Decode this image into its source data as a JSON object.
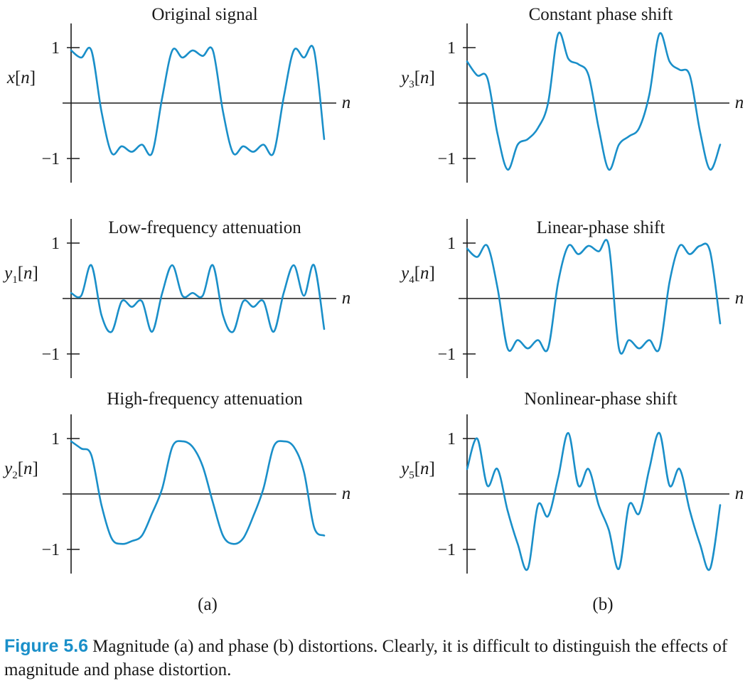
{
  "chart_data": [
    {
      "type": "line",
      "id": "x",
      "title": "Original signal",
      "ylabel": {
        "base": "x",
        "sub": "",
        "arg": "n"
      },
      "xlabel": "n",
      "yticks": [
        1,
        -1
      ],
      "ylim": [
        -1.4,
        1.4
      ],
      "series": [
        {
          "name": "x[n]",
          "x": [
            0,
            4,
            8,
            12,
            16,
            20,
            24,
            28,
            32,
            36,
            40,
            44,
            48,
            52,
            56,
            60,
            64,
            68,
            72,
            76,
            80,
            84,
            88,
            92,
            96,
            100
          ],
          "y": [
            0.95,
            0.82,
            0.95,
            -0.15,
            -0.9,
            -0.78,
            -0.88,
            -0.75,
            -0.9,
            0.1,
            0.95,
            0.82,
            0.95,
            0.85,
            0.95,
            -0.15,
            -0.9,
            -0.78,
            -0.88,
            -0.75,
            -0.9,
            0.1,
            0.95,
            0.82,
            0.95,
            -0.65
          ]
        }
      ]
    },
    {
      "type": "line",
      "id": "y3",
      "title": "Constant phase shift",
      "ylabel": {
        "base": "y",
        "sub": "3",
        "arg": "n"
      },
      "xlabel": "n",
      "yticks": [
        1,
        -1
      ],
      "ylim": [
        -1.4,
        1.4
      ],
      "series": [
        {
          "name": "y3[n]",
          "x": [
            0,
            4,
            8,
            12,
            16,
            20,
            24,
            28,
            32,
            36,
            40,
            44,
            48,
            52,
            56,
            60,
            64,
            68,
            72,
            76,
            80,
            84,
            88,
            92,
            96,
            100
          ],
          "y": [
            0.75,
            0.5,
            0.45,
            -0.55,
            -1.2,
            -0.75,
            -0.65,
            -0.45,
            0.0,
            1.25,
            0.8,
            0.7,
            0.5,
            -0.45,
            -1.2,
            -0.75,
            -0.6,
            -0.45,
            0.15,
            1.25,
            0.75,
            0.6,
            0.5,
            -0.5,
            -1.2,
            -0.75
          ]
        }
      ]
    },
    {
      "type": "line",
      "id": "y1",
      "title": "Low-frequency attenuation",
      "ylabel": {
        "base": "y",
        "sub": "1",
        "arg": "n"
      },
      "xlabel": "n",
      "yticks": [
        1,
        -1
      ],
      "ylim": [
        -1.4,
        1.4
      ],
      "series": [
        {
          "name": "y1[n]",
          "x": [
            0,
            4,
            8,
            12,
            16,
            20,
            24,
            28,
            32,
            36,
            40,
            44,
            48,
            52,
            56,
            60,
            64,
            68,
            72,
            76,
            80,
            84,
            88,
            92,
            96,
            100
          ],
          "y": [
            0.1,
            0.05,
            0.6,
            -0.3,
            -0.6,
            -0.05,
            -0.15,
            -0.05,
            -0.6,
            0.1,
            0.6,
            0.05,
            0.1,
            0.05,
            0.6,
            -0.3,
            -0.6,
            -0.05,
            -0.15,
            -0.05,
            -0.6,
            0.1,
            0.6,
            0.05,
            0.6,
            -0.55
          ]
        }
      ]
    },
    {
      "type": "line",
      "id": "y4",
      "title": "Linear-phase shift",
      "ylabel": {
        "base": "y",
        "sub": "4",
        "arg": "n"
      },
      "xlabel": "n",
      "yticks": [
        1,
        -1
      ],
      "ylim": [
        -1.4,
        1.4
      ],
      "series": [
        {
          "name": "y4[n]",
          "x": [
            0,
            4,
            8,
            12,
            16,
            20,
            24,
            28,
            32,
            36,
            40,
            44,
            48,
            52,
            56,
            60,
            64,
            68,
            72,
            76,
            80,
            84,
            88,
            92,
            96,
            100
          ],
          "y": [
            0.9,
            0.75,
            0.95,
            0.2,
            -0.9,
            -0.75,
            -0.9,
            -0.75,
            -0.9,
            0.3,
            0.95,
            0.8,
            0.95,
            0.85,
            0.95,
            -0.9,
            -0.75,
            -0.9,
            -0.75,
            -0.9,
            0.3,
            0.95,
            0.8,
            0.95,
            0.85,
            -0.45
          ]
        }
      ]
    },
    {
      "type": "line",
      "id": "y2",
      "title": "High-frequency attenuation",
      "ylabel": {
        "base": "y",
        "sub": "2",
        "arg": "n"
      },
      "xlabel": "n",
      "yticks": [
        1,
        -1
      ],
      "ylim": [
        -1.4,
        1.4
      ],
      "series": [
        {
          "name": "y2[n]",
          "x": [
            0,
            4,
            8,
            12,
            16,
            20,
            24,
            28,
            32,
            36,
            40,
            44,
            48,
            52,
            56,
            60,
            64,
            68,
            72,
            76,
            80,
            84,
            88,
            92,
            96,
            100
          ],
          "y": [
            0.95,
            0.82,
            0.7,
            -0.2,
            -0.8,
            -0.9,
            -0.85,
            -0.75,
            -0.35,
            0.1,
            0.85,
            0.95,
            0.85,
            0.5,
            -0.15,
            -0.75,
            -0.9,
            -0.8,
            -0.4,
            0.1,
            0.85,
            0.95,
            0.85,
            0.4,
            -0.6,
            -0.75
          ]
        }
      ]
    },
    {
      "type": "line",
      "id": "y5",
      "title": "Nonlinear-phase shift",
      "ylabel": {
        "base": "y",
        "sub": "5",
        "arg": "n"
      },
      "xlabel": "n",
      "yticks": [
        1,
        -1
      ],
      "ylim": [
        -1.4,
        1.4
      ],
      "series": [
        {
          "name": "y5[n]",
          "x": [
            0,
            4,
            8,
            12,
            16,
            20,
            24,
            28,
            32,
            36,
            40,
            44,
            48,
            52,
            56,
            60,
            64,
            68,
            72,
            76,
            80,
            84,
            88,
            92,
            96,
            100
          ],
          "y": [
            0.45,
            1.0,
            0.15,
            0.45,
            -0.3,
            -0.9,
            -1.35,
            -0.2,
            -0.4,
            0.3,
            1.1,
            0.15,
            0.45,
            -0.2,
            -0.65,
            -1.35,
            -0.2,
            -0.35,
            0.45,
            1.1,
            0.15,
            0.45,
            -0.3,
            -0.9,
            -1.35,
            -0.2
          ]
        }
      ]
    }
  ],
  "panel_labels": [
    "(a)",
    "(b)"
  ],
  "caption": {
    "label": "Figure 5.6",
    "text": "Magnitude (a) and phase (b) distortions. Clearly, it is difficult to distinguish the effects of magnitude and phase distortion."
  },
  "colors": {
    "series": "#1a8fc9",
    "axis": "#1a1a1a",
    "caption_label": "#1a8fc9"
  }
}
